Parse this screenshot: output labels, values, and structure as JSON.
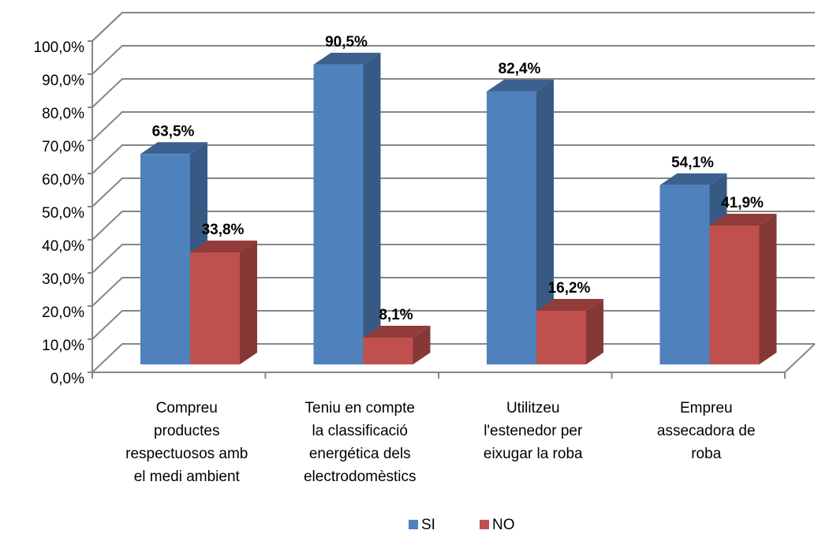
{
  "chart_data": {
    "type": "bar3d",
    "categories": [
      "Compreu\nproductes\nrespectuosos amb\nel medi ambient",
      "Teniu en compte\nla classificació\nenergética dels\nelectrodomèstics",
      "Utilitzeu\nl'estenedor per\neixugar la roba",
      "Empreu\nassecadora de\nroba"
    ],
    "series": [
      {
        "name": "SI",
        "color": "#4f81bd",
        "values": [
          63.5,
          90.5,
          82.4,
          54.1
        ],
        "value_labels": [
          "63,5%",
          "90,5%",
          "82,4%",
          "54,1%"
        ]
      },
      {
        "name": "NO",
        "color": "#c0504d",
        "values": [
          33.8,
          8.1,
          16.2,
          41.9
        ],
        "value_labels": [
          "33,8%",
          "8,1%",
          "16,2%",
          "41,9%"
        ]
      }
    ],
    "ylim": [
      0,
      100
    ],
    "yticks": [
      {
        "value": 0,
        "label": "0,0%"
      },
      {
        "value": 10,
        "label": "10,0%"
      },
      {
        "value": 20,
        "label": "20,0%"
      },
      {
        "value": 30,
        "label": "30,0%"
      },
      {
        "value": 40,
        "label": "40,0%"
      },
      {
        "value": 50,
        "label": "50,0%"
      },
      {
        "value": 60,
        "label": "60,0%"
      },
      {
        "value": 70,
        "label": "70,0%"
      },
      {
        "value": 80,
        "label": "80,0%"
      },
      {
        "value": 90,
        "label": "90,0%"
      },
      {
        "value": 100,
        "label": "100,0%"
      }
    ],
    "grid": true,
    "legend": "bottom"
  }
}
